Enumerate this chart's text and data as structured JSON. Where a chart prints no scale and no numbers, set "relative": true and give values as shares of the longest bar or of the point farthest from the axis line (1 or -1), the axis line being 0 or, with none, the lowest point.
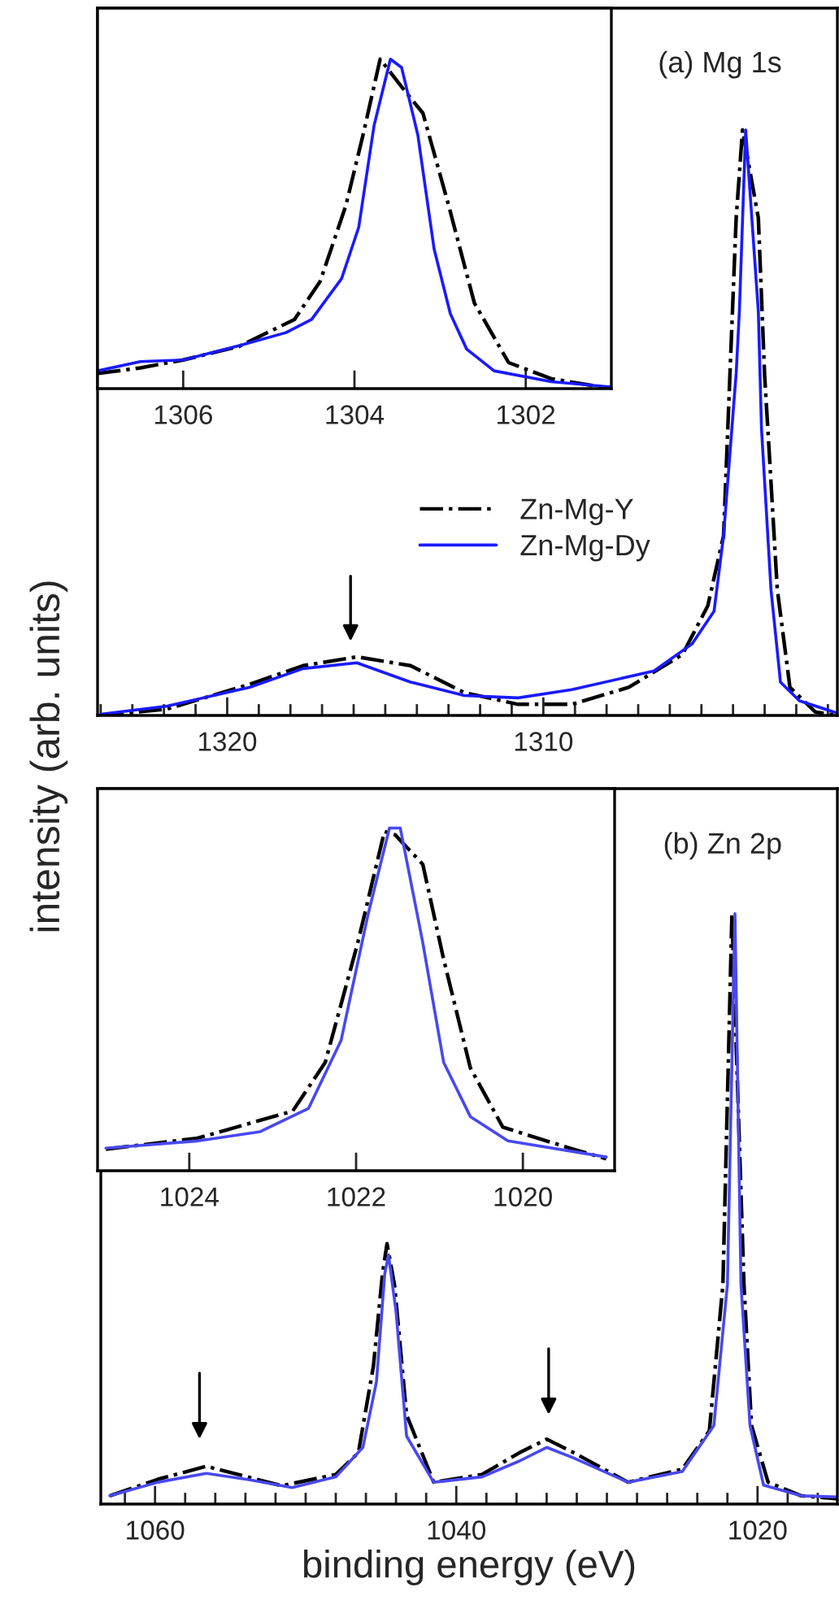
{
  "chart_data": [
    {
      "type": "line",
      "title": "(a) Mg 1s",
      "ylabel": "intensity (arb. units)",
      "relative": true,
      "legend": "center",
      "xlim": [
        1324.1,
        1300.7
      ],
      "xticks": [
        {
          "value": 1301,
          "label": null
        },
        {
          "value": 1302,
          "label": null
        },
        {
          "value": 1303,
          "label": null
        },
        {
          "value": 1304,
          "label": null
        },
        {
          "value": 1305,
          "label": null
        },
        {
          "value": 1306,
          "label": null
        },
        {
          "value": 1307,
          "label": null
        },
        {
          "value": 1308,
          "label": null
        },
        {
          "value": 1309,
          "label": null
        },
        1310,
        {
          "value": 1311,
          "label": null
        },
        {
          "value": 1312,
          "label": null
        },
        {
          "value": 1313,
          "label": null
        },
        {
          "value": 1314,
          "label": null
        },
        {
          "value": 1315,
          "label": null
        },
        {
          "value": 1316,
          "label": null
        },
        {
          "value": 1317,
          "label": null
        },
        {
          "value": 1318,
          "label": null
        },
        {
          "value": 1319,
          "label": null
        },
        1320,
        {
          "value": 1321,
          "label": null
        },
        {
          "value": 1322,
          "label": null
        },
        {
          "value": 1323,
          "label": null
        },
        {
          "value": 1324,
          "label": null
        }
      ],
      "series": [
        {
          "name": "Zn-Mg-Y",
          "color": "#000000",
          "line_style": "dashdot",
          "x": [
            1324.0,
            1321.9,
            1319.3,
            1317.6,
            1315.9,
            1314.2,
            1312.5,
            1310.8,
            1309.1,
            1307.3,
            1305.6,
            1304.8,
            1304.3,
            1304.1,
            1303.9,
            1303.7,
            1303.2,
            1303.0,
            1302.9,
            1302.6,
            1302.2,
            1301.4,
            1300.7
          ],
          "values": [
            0,
            0.011,
            0.053,
            0.085,
            0.1,
            0.085,
            0.039,
            0.019,
            0.019,
            0.048,
            0.104,
            0.187,
            0.307,
            0.58,
            0.85,
            1.0,
            0.85,
            0.58,
            0.49,
            0.215,
            0.048,
            0.006,
            0
          ]
        },
        {
          "name": "Zn-Mg-Dy",
          "color": "#1a1aff",
          "line_style": "solid",
          "x": [
            1324.0,
            1321.9,
            1319.3,
            1317.6,
            1315.9,
            1314.2,
            1312.5,
            1310.8,
            1309.1,
            1306.5,
            1305.3,
            1304.6,
            1304.3,
            1303.9,
            1303.8,
            1303.6,
            1303.2,
            1303.1,
            1302.8,
            1302.5,
            1301.9,
            1300.7
          ],
          "values": [
            0.002,
            0.016,
            0.048,
            0.08,
            0.09,
            0.057,
            0.034,
            0.03,
            0.044,
            0.076,
            0.122,
            0.178,
            0.307,
            0.585,
            0.69,
            1.0,
            0.69,
            0.49,
            0.215,
            0.057,
            0.025,
            0.004
          ]
        }
      ]
    },
    {
      "type": "line",
      "relative": true,
      "xlim": [
        1307.0,
        1301.0
      ],
      "xticks": [
        1306,
        1304,
        1302
      ],
      "series": [
        {
          "color": "#000000",
          "line_style": "dashdot",
          "x": [
            1307.0,
            1306.5,
            1306.0,
            1305.35,
            1304.7,
            1304.4,
            1304.1,
            1303.9,
            1303.7,
            1303.4,
            1303.2,
            1302.9,
            1302.6,
            1302.2,
            1301.7,
            1301.0
          ],
          "values": [
            0.046,
            0.063,
            0.087,
            0.128,
            0.21,
            0.326,
            0.556,
            0.77,
            1.0,
            0.9,
            0.836,
            0.556,
            0.26,
            0.079,
            0.03,
            0
          ]
        },
        {
          "color": "#1a1aff",
          "line_style": "solid",
          "x": [
            1307.0,
            1306.5,
            1306.0,
            1305.35,
            1304.8,
            1304.5,
            1304.15,
            1303.95,
            1303.77,
            1303.58,
            1303.45,
            1303.26,
            1303.07,
            1302.88,
            1302.69,
            1302.37,
            1301.7,
            1301.0
          ],
          "values": [
            0.054,
            0.082,
            0.087,
            0.13,
            0.17,
            0.21,
            0.334,
            0.49,
            0.8,
            1.0,
            0.975,
            0.77,
            0.424,
            0.227,
            0.12,
            0.054,
            0.021,
            0.005
          ]
        }
      ]
    },
    {
      "type": "line",
      "title": "(b) Zn 2p",
      "xlabel": "binding energy (eV)",
      "relative": true,
      "xlim": [
        1063.6,
        1014.7
      ],
      "xticks": [
        {
          "value": 1016,
          "label": null
        },
        {
          "value": 1018,
          "label": null
        },
        1020,
        {
          "value": 1022,
          "label": null
        },
        {
          "value": 1024,
          "label": null
        },
        {
          "value": 1026,
          "label": null
        },
        {
          "value": 1028,
          "label": null
        },
        {
          "value": 1030,
          "label": null
        },
        {
          "value": 1032,
          "label": null
        },
        {
          "value": 1034,
          "label": null
        },
        {
          "value": 1036,
          "label": null
        },
        {
          "value": 1038,
          "label": null
        },
        1040,
        {
          "value": 1042,
          "label": null
        },
        {
          "value": 1044,
          "label": null
        },
        {
          "value": 1046,
          "label": null
        },
        {
          "value": 1048,
          "label": null
        },
        {
          "value": 1050,
          "label": null
        },
        {
          "value": 1052,
          "label": null
        },
        {
          "value": 1054,
          "label": null
        },
        {
          "value": 1056,
          "label": null
        },
        {
          "value": 1058,
          "label": null
        },
        1060,
        {
          "value": 1062,
          "label": null
        }
      ],
      "series": [
        {
          "color": "#000000",
          "line_style": "dashdot",
          "x": [
            1063.0,
            1059.8,
            1056.6,
            1053.7,
            1051.6,
            1048.0,
            1046.5,
            1045.5,
            1044.9,
            1044.6,
            1044.1,
            1043.3,
            1041.5,
            1038.3,
            1035.8,
            1034.0,
            1032.2,
            1028.6,
            1025.0,
            1023.2,
            1022.3,
            1021.7,
            1020.9,
            1020.4,
            1019.3,
            1017.1,
            1014.7
          ],
          "values": [
            0.014,
            0.042,
            0.064,
            0.045,
            0.031,
            0.05,
            0.087,
            0.234,
            0.39,
            0.441,
            0.371,
            0.151,
            0.037,
            0.05,
            0.087,
            0.11,
            0.087,
            0.037,
            0.059,
            0.124,
            0.371,
            1.0,
            0.371,
            0.133,
            0.037,
            0.014,
            0.009
          ]
        },
        {
          "color": "#4848f0",
          "line_style": "solid",
          "x": [
            1063.0,
            1059.8,
            1056.6,
            1053.7,
            1050.9,
            1048.0,
            1046.2,
            1045.3,
            1044.75,
            1044.5,
            1044.0,
            1043.3,
            1041.5,
            1038.3,
            1035.8,
            1034.0,
            1032.2,
            1028.6,
            1025.0,
            1022.9,
            1022.0,
            1021.5,
            1021.1,
            1020.5,
            1019.6,
            1017.1,
            1014.7
          ],
          "values": [
            0.014,
            0.037,
            0.052,
            0.041,
            0.028,
            0.046,
            0.096,
            0.207,
            0.39,
            0.422,
            0.326,
            0.115,
            0.037,
            0.046,
            0.073,
            0.096,
            0.078,
            0.037,
            0.055,
            0.133,
            0.372,
            1.0,
            0.372,
            0.133,
            0.032,
            0.014,
            0.012
          ]
        }
      ]
    },
    {
      "type": "line",
      "relative": true,
      "xlim": [
        1025.1,
        1018.9
      ],
      "xticks": [
        1024,
        1022,
        1020
      ],
      "series": [
        {
          "color": "#000000",
          "line_style": "dashdot",
          "x": [
            1025.0,
            1023.9,
            1022.76,
            1022.37,
            1021.98,
            1021.66,
            1021.53,
            1021.2,
            1020.95,
            1020.63,
            1020.24,
            1019.4,
            1019.0
          ],
          "values": [
            0.063,
            0.095,
            0.174,
            0.316,
            0.665,
            0.99,
            0.98,
            0.894,
            0.617,
            0.3,
            0.127,
            0.063,
            0.035
          ]
        },
        {
          "color": "#4848f0",
          "line_style": "solid",
          "x": [
            1025.0,
            1023.9,
            1023.15,
            1022.57,
            1022.18,
            1021.86,
            1021.6,
            1021.47,
            1021.2,
            1020.95,
            1020.63,
            1020.18,
            1019.0
          ],
          "values": [
            0.066,
            0.087,
            0.114,
            0.182,
            0.38,
            0.744,
            1.0,
            1.0,
            0.665,
            0.316,
            0.158,
            0.087,
            0.04
          ]
        }
      ]
    }
  ]
}
